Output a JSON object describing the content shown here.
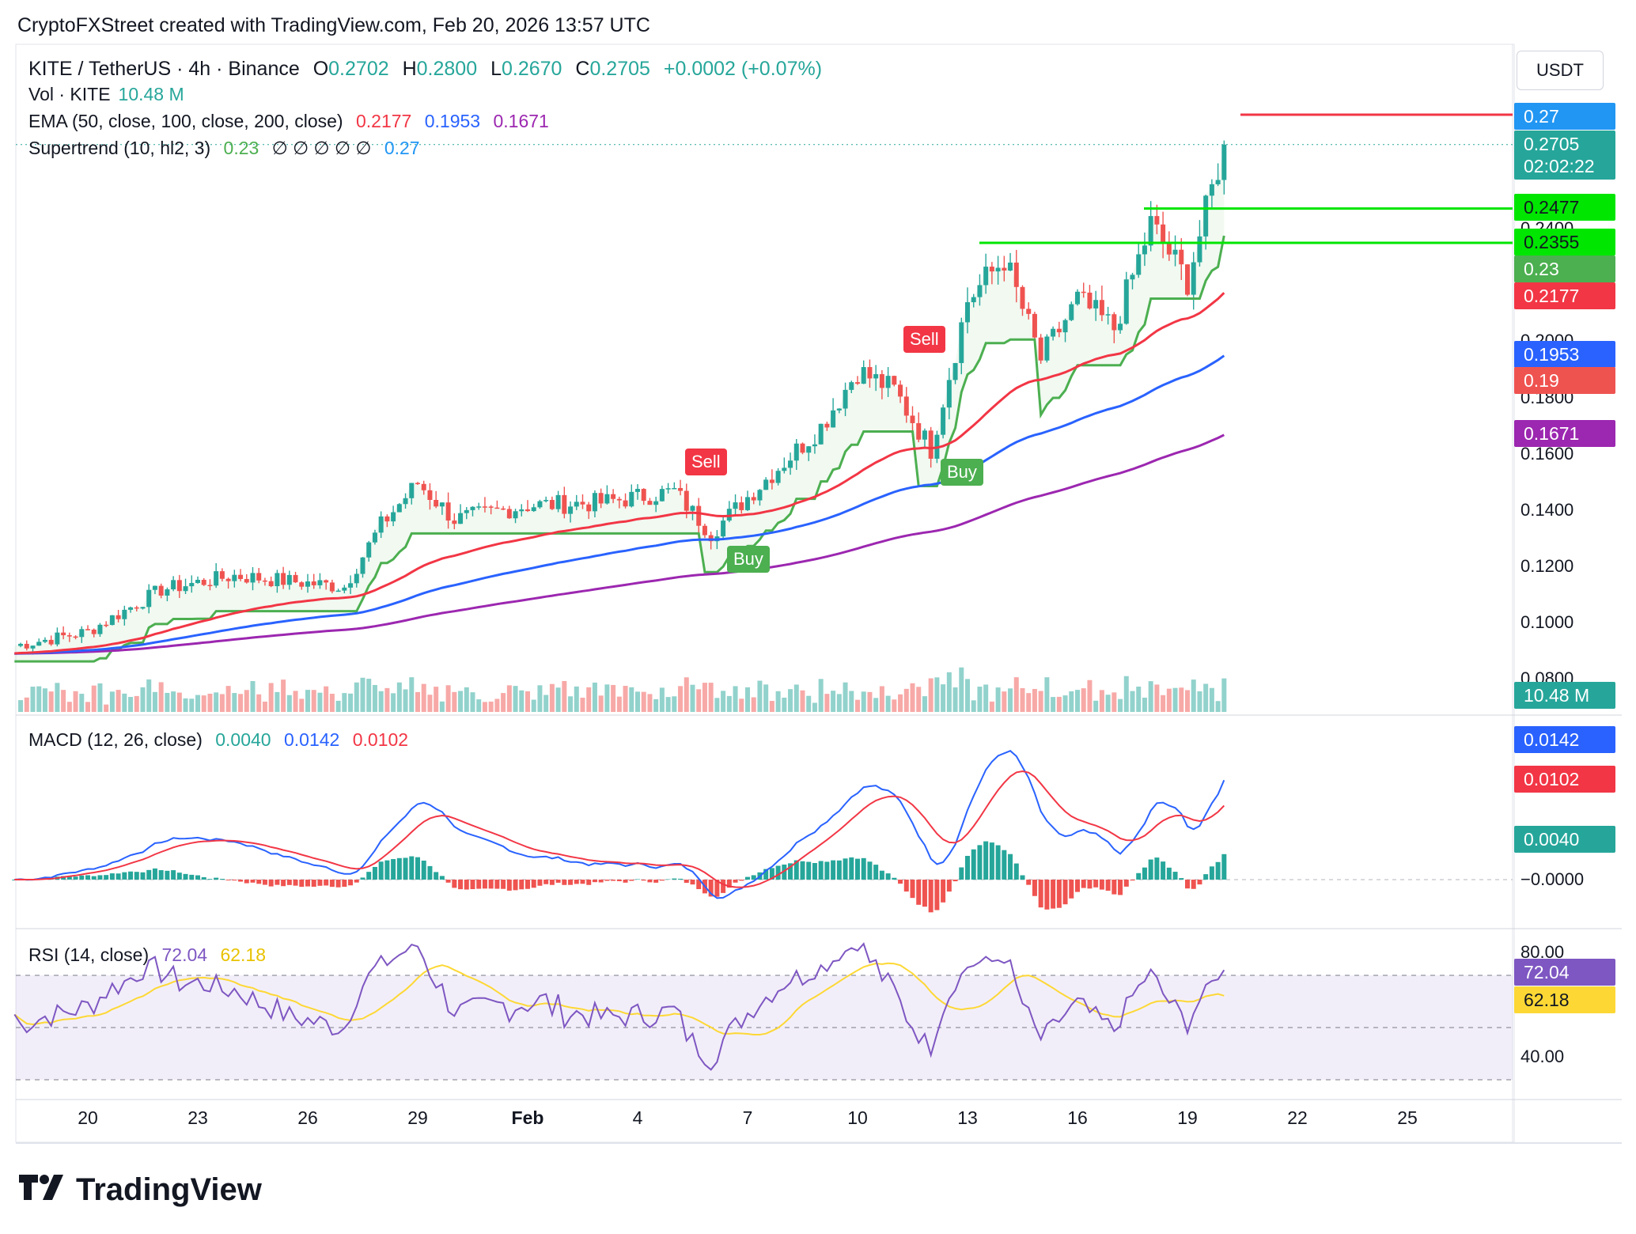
{
  "header": {
    "attribution": "CryptoFXStreet created with TradingView.com, Feb 20, 2026 13:57 UTC"
  },
  "legend": {
    "symbol": "KITE / TetherUS · 4h · Binance",
    "o_label": "O",
    "o": "0.2702",
    "h_label": "H",
    "h": "0.2800",
    "l_label": "L",
    "l": "0.2670",
    "c_label": "C",
    "c": "0.2705",
    "change": "+0.0002 (+0.07%)",
    "vol_label": "Vol · KITE",
    "vol": "10.48 M",
    "ema_label": "EMA (50, close, 100, close, 200, close)",
    "ema50": "0.2177",
    "ema100": "0.1953",
    "ema200": "0.1671",
    "st_label": "Supertrend (10, hl2, 3)",
    "st_up": "0.23",
    "st_na": "∅ ∅ ∅ ∅ ∅",
    "st_down": "0.27",
    "macd_label": "MACD (12, 26, close)",
    "macd_hist": "0.0040",
    "macd_line": "0.0142",
    "macd_signal": "0.0102",
    "rsi_label": "RSI (14, close)",
    "rsi": "72.04",
    "rsi_ma": "62.18"
  },
  "currency_button": "USDT",
  "price_axis": {
    "ticks": [
      "0.2400",
      "0.2000",
      "0.1800",
      "0.1600",
      "0.1400",
      "0.1200",
      "0.1000",
      "0.0800"
    ]
  },
  "macd_axis": {
    "ticks": [
      "−0.0000"
    ]
  },
  "rsi_axis": {
    "ticks": [
      "80.00",
      "40.00"
    ]
  },
  "price_labels": {
    "st_down": "0.27",
    "last": "0.2705",
    "countdown": "02:02:22",
    "level1": "0.2477",
    "level2": "0.2355",
    "st_up": "0.23",
    "ema50": "0.2177",
    "ema100": "0.1953",
    "prev": "0.19",
    "ema200": "0.1671",
    "volume": "10.48 M",
    "macd_line": "0.0142",
    "macd_signal": "0.0102",
    "macd_hist": "0.0040",
    "rsi": "72.04",
    "rsi_ma": "62.18"
  },
  "x_axis": {
    "ticks": [
      "20",
      "23",
      "26",
      "29",
      "Feb",
      "4",
      "7",
      "10",
      "13",
      "16",
      "19",
      "22",
      "25"
    ]
  },
  "signals": [
    {
      "label": "Sell"
    },
    {
      "label": "Buy"
    },
    {
      "label": "Sell"
    },
    {
      "label": "Buy"
    }
  ],
  "brand": "TradingView",
  "colors": {
    "up": "#26a69a",
    "down": "#ef5350",
    "ema50": "#f23645",
    "ema100": "#2962ff",
    "ema200": "#9c27b0",
    "supertrend_up": "#4caf50",
    "supertrend_down": "#f23645",
    "macd_line": "#2962ff",
    "macd_signal": "#f23645",
    "rsi_line": "#7e57c2",
    "rsi_ma": "#fdd835",
    "level_line": "#00e600",
    "resistance": "#f23645"
  },
  "chart_data": {
    "type": "candlestick",
    "symbol": "KITE / TetherUS",
    "interval": "4h",
    "exchange": "Binance",
    "price_range": [
      0.07,
      0.28
    ],
    "horizontal_levels": [
      0.2477,
      0.2355,
      0.28
    ],
    "close_keypoints": [
      {
        "date": "Jan 18",
        "close": 0.092
      },
      {
        "date": "Jan 20",
        "close": 0.097
      },
      {
        "date": "Jan 22",
        "close": 0.112
      },
      {
        "date": "Jan 24",
        "close": 0.117
      },
      {
        "date": "Jan 27",
        "close": 0.113
      },
      {
        "date": "Jan 28",
        "close": 0.135
      },
      {
        "date": "Jan 29",
        "close": 0.15
      },
      {
        "date": "Jan 30",
        "close": 0.137
      },
      {
        "date": "Feb 1",
        "close": 0.142
      },
      {
        "date": "Feb 3",
        "close": 0.143
      },
      {
        "date": "Feb 5",
        "close": 0.147
      },
      {
        "date": "Feb 6",
        "close": 0.132
      },
      {
        "date": "Feb 7",
        "close": 0.145
      },
      {
        "date": "Feb 9",
        "close": 0.17
      },
      {
        "date": "Feb 10",
        "close": 0.19
      },
      {
        "date": "Feb 11",
        "close": 0.183
      },
      {
        "date": "Feb 12",
        "close": 0.162
      },
      {
        "date": "Feb 13",
        "close": 0.215
      },
      {
        "date": "Feb 14",
        "close": 0.23
      },
      {
        "date": "Feb 15",
        "close": 0.194
      },
      {
        "date": "Feb 16",
        "close": 0.215
      },
      {
        "date": "Feb 17",
        "close": 0.205
      },
      {
        "date": "Feb 18",
        "close": 0.242
      },
      {
        "date": "Feb 19",
        "close": 0.222
      },
      {
        "date": "Feb 20",
        "close": 0.2705
      }
    ],
    "ema50_last": 0.2177,
    "ema100_last": 0.1953,
    "ema200_last": 0.1671,
    "macd": {
      "hist": 0.004,
      "macd": 0.0142,
      "signal": 0.0102
    },
    "rsi": {
      "value": 72.04,
      "ma": 62.18,
      "bands": [
        30,
        70
      ],
      "range": [
        20,
        90
      ]
    },
    "signal_dates": [
      {
        "label": "Sell",
        "date": "Feb 5"
      },
      {
        "label": "Buy",
        "date": "Feb 6"
      },
      {
        "label": "Sell",
        "date": "Feb 12"
      },
      {
        "label": "Buy",
        "date": "Feb 12"
      }
    ]
  }
}
